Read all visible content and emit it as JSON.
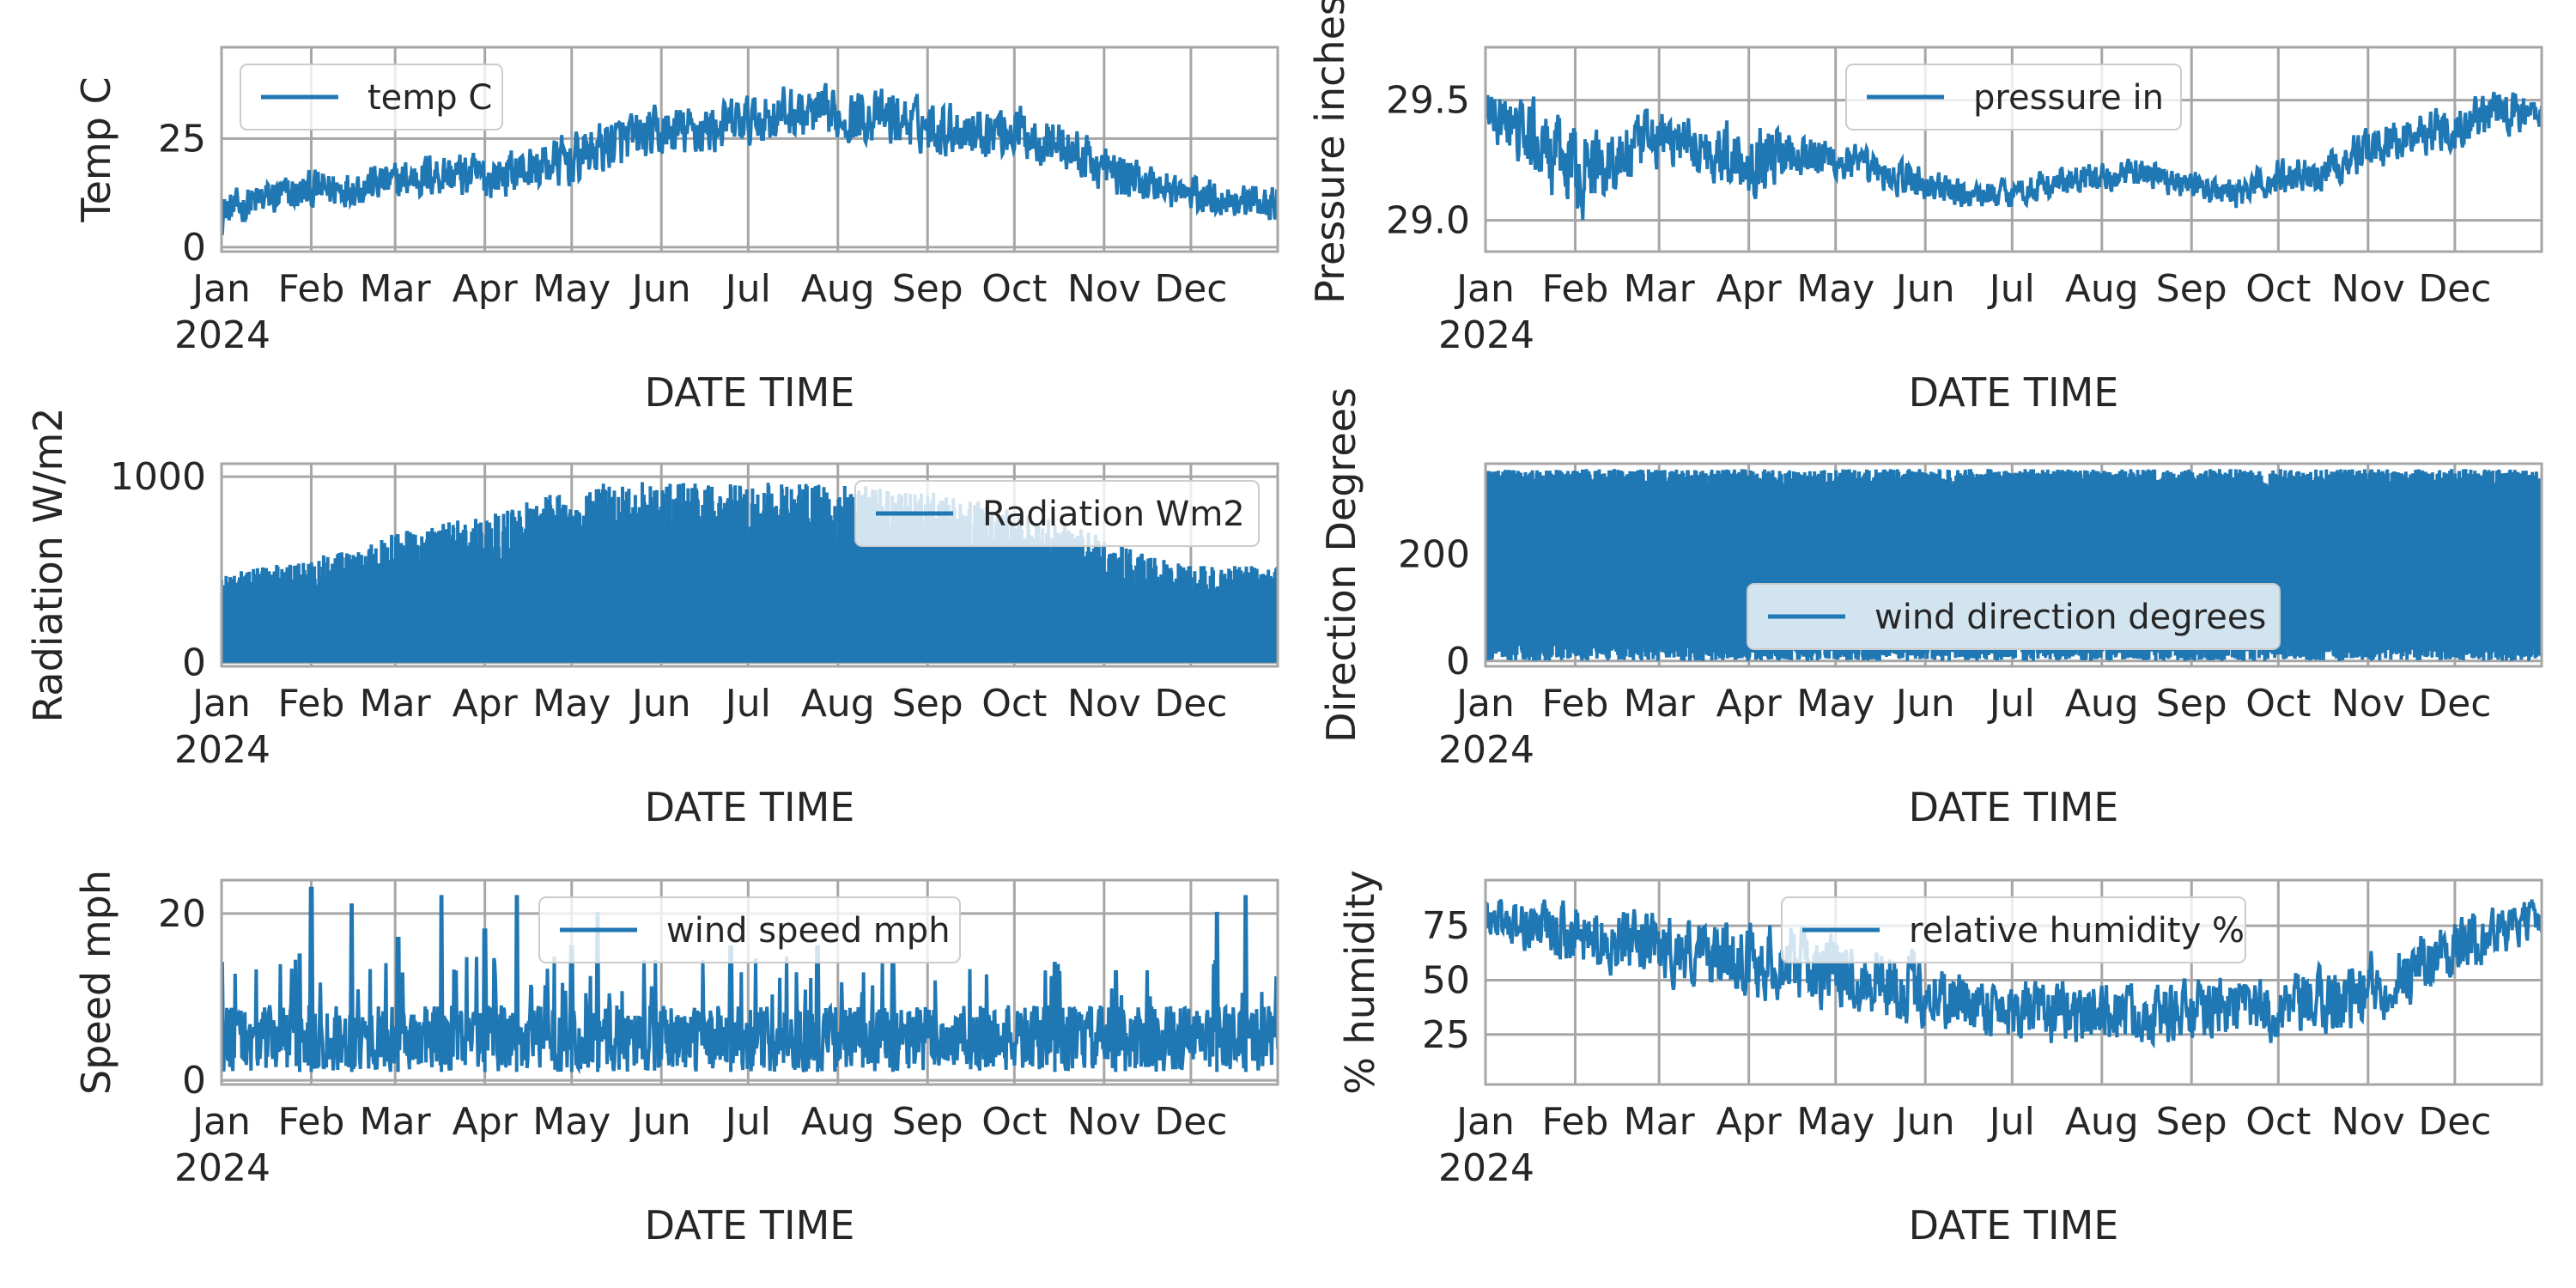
{
  "chart_data": [
    {
      "type": "line",
      "ylabel": "Temp C",
      "xlabel": "DATE TIME",
      "x_ticks": [
        "Jan\n2024",
        "Feb",
        "Mar",
        "Apr",
        "May",
        "Jun",
        "Jul",
        "Aug",
        "Sep",
        "Oct",
        "Nov",
        "Dec"
      ],
      "y_ticks": [
        0,
        25
      ],
      "ylim": [
        -1,
        46
      ],
      "xlim": [
        "2024-01-01",
        "2024-12-31"
      ],
      "legend_position": "upper-left",
      "grid": true,
      "series": [
        {
          "name": "temp C",
          "color": "#1f77b4",
          "x": [
            "2024-01-01",
            "2024-01-15",
            "2024-02-01",
            "2024-02-15",
            "2024-03-01",
            "2024-03-15",
            "2024-04-01",
            "2024-04-15",
            "2024-05-01",
            "2024-05-15",
            "2024-06-01",
            "2024-06-15",
            "2024-07-01",
            "2024-07-15",
            "2024-08-01",
            "2024-08-15",
            "2024-09-01",
            "2024-09-15",
            "2024-10-01",
            "2024-10-15",
            "2024-11-01",
            "2024-11-15",
            "2024-12-01",
            "2024-12-15",
            "2024-12-31"
          ],
          "mean": [
            8,
            11,
            13,
            14,
            15,
            17,
            16,
            18,
            20,
            24,
            26,
            27,
            29,
            31,
            30,
            30,
            28,
            27,
            27,
            24,
            18,
            15,
            12,
            11,
            10
          ],
          "spread": [
            5,
            6,
            6,
            6,
            6,
            7,
            7,
            7,
            8,
            8,
            8,
            8,
            8,
            8,
            8,
            8,
            8,
            8,
            8,
            8,
            7,
            6,
            6,
            5,
            5
          ]
        }
      ]
    },
    {
      "type": "line",
      "ylabel": "Pressure inches",
      "xlabel": "DATE TIME",
      "x_ticks": [
        "Jan\n2024",
        "Feb",
        "Mar",
        "Apr",
        "May",
        "Jun",
        "Jul",
        "Aug",
        "Sep",
        "Oct",
        "Nov",
        "Dec"
      ],
      "y_ticks": [
        29.0,
        29.5
      ],
      "ylim": [
        28.87,
        29.72
      ],
      "xlim": [
        "2024-01-01",
        "2024-12-31"
      ],
      "legend_position": "upper-center",
      "grid": true,
      "series": [
        {
          "name": "pressure in",
          "color": "#1f77b4",
          "x": [
            "2024-01-01",
            "2024-01-15",
            "2024-02-01",
            "2024-02-15",
            "2024-03-01",
            "2024-03-15",
            "2024-04-01",
            "2024-04-15",
            "2024-05-01",
            "2024-05-15",
            "2024-06-01",
            "2024-06-15",
            "2024-07-01",
            "2024-07-15",
            "2024-08-01",
            "2024-08-15",
            "2024-09-01",
            "2024-09-15",
            "2024-10-01",
            "2024-10-15",
            "2024-11-01",
            "2024-11-15",
            "2024-12-01",
            "2024-12-15",
            "2024-12-31"
          ],
          "mean": [
            29.45,
            29.35,
            29.2,
            29.25,
            29.35,
            29.3,
            29.25,
            29.3,
            29.25,
            29.2,
            29.15,
            29.1,
            29.12,
            29.15,
            29.18,
            29.2,
            29.15,
            29.1,
            29.18,
            29.2,
            29.3,
            29.35,
            29.4,
            29.45,
            29.45
          ],
          "spread": [
            0.15,
            0.2,
            0.25,
            0.2,
            0.15,
            0.15,
            0.2,
            0.15,
            0.12,
            0.1,
            0.1,
            0.08,
            0.08,
            0.08,
            0.08,
            0.08,
            0.08,
            0.08,
            0.1,
            0.1,
            0.12,
            0.12,
            0.12,
            0.12,
            0.1
          ]
        }
      ]
    },
    {
      "type": "line",
      "ylabel": "Radiation W/m2",
      "xlabel": "DATE TIME",
      "x_ticks": [
        "Jan\n2024",
        "Feb",
        "Mar",
        "Apr",
        "May",
        "Jun",
        "Jul",
        "Aug",
        "Sep",
        "Oct",
        "Nov",
        "Dec"
      ],
      "y_ticks": [
        0,
        1000
      ],
      "ylim": [
        -20,
        1070
      ],
      "xlim": [
        "2024-01-01",
        "2024-12-31"
      ],
      "legend_position": "upper-right",
      "grid": true,
      "series": [
        {
          "name": "Radiation Wm2",
          "color": "#1f77b4",
          "x": [
            "2024-01-01",
            "2024-01-15",
            "2024-02-01",
            "2024-02-15",
            "2024-03-01",
            "2024-03-15",
            "2024-04-01",
            "2024-04-15",
            "2024-05-01",
            "2024-05-15",
            "2024-06-01",
            "2024-06-15",
            "2024-07-01",
            "2024-07-15",
            "2024-08-01",
            "2024-08-15",
            "2024-09-01",
            "2024-09-15",
            "2024-10-01",
            "2024-10-15",
            "2024-11-01",
            "2024-11-15",
            "2024-12-01",
            "2024-12-15",
            "2024-12-31"
          ],
          "min": [
            0,
            0,
            0,
            0,
            0,
            0,
            0,
            0,
            0,
            0,
            0,
            0,
            0,
            0,
            0,
            0,
            0,
            0,
            0,
            0,
            0,
            0,
            0,
            0,
            0
          ],
          "max": [
            480,
            530,
            560,
            620,
            700,
            740,
            800,
            860,
            940,
            970,
            980,
            980,
            975,
            970,
            960,
            950,
            920,
            880,
            830,
            760,
            680,
            580,
            520,
            520,
            530
          ]
        }
      ]
    },
    {
      "type": "line",
      "ylabel": "Direction Degrees",
      "xlabel": "DATE TIME",
      "x_ticks": [
        "Jan\n2024",
        "Feb",
        "Mar",
        "Apr",
        "May",
        "Jun",
        "Jul",
        "Aug",
        "Sep",
        "Oct",
        "Nov",
        "Dec"
      ],
      "y_ticks": [
        0,
        200
      ],
      "ylim": [
        -10,
        370
      ],
      "xlim": [
        "2024-01-01",
        "2024-12-31"
      ],
      "legend_position": "lower-center",
      "grid": true,
      "series": [
        {
          "name": "wind direction degrees",
          "color": "#1f77b4",
          "range": [
            0,
            360
          ]
        }
      ]
    },
    {
      "type": "line",
      "ylabel": "Speed mph",
      "xlabel": "DATE TIME",
      "x_ticks": [
        "Jan\n2024",
        "Feb",
        "Mar",
        "Apr",
        "May",
        "Jun",
        "Jul",
        "Aug",
        "Sep",
        "Oct",
        "Nov",
        "Dec"
      ],
      "y_ticks": [
        0,
        20
      ],
      "ylim": [
        -0.5,
        24
      ],
      "xlim": [
        "2024-01-01",
        "2024-12-31"
      ],
      "legend_position": "upper-center",
      "grid": true,
      "series": [
        {
          "name": "wind speed mph",
          "color": "#1f77b4",
          "typical_range": [
            0,
            9
          ],
          "peaks": [
            {
              "x": "2024-01-01",
              "y": 14
            },
            {
              "x": "2024-01-28",
              "y": 15
            },
            {
              "x": "2024-02-01",
              "y": 23
            },
            {
              "x": "2024-02-15",
              "y": 21
            },
            {
              "x": "2024-03-02",
              "y": 17
            },
            {
              "x": "2024-03-17",
              "y": 22
            },
            {
              "x": "2024-04-01",
              "y": 18
            },
            {
              "x": "2024-04-12",
              "y": 22
            },
            {
              "x": "2024-05-01",
              "y": 16
            },
            {
              "x": "2024-05-10",
              "y": 20
            },
            {
              "x": "2024-06-25",
              "y": 16
            },
            {
              "x": "2024-07-25",
              "y": 16
            },
            {
              "x": "2024-08-20",
              "y": 14
            },
            {
              "x": "2024-10-15",
              "y": 14
            },
            {
              "x": "2024-11-05",
              "y": 13
            },
            {
              "x": "2024-12-10",
              "y": 20
            },
            {
              "x": "2024-12-20",
              "y": 22
            }
          ]
        }
      ]
    },
    {
      "type": "line",
      "ylabel": "% humidity",
      "xlabel": "DATE TIME",
      "x_ticks": [
        "Jan\n2024",
        "Feb",
        "Mar",
        "Apr",
        "May",
        "Jun",
        "Jul",
        "Aug",
        "Sep",
        "Oct",
        "Nov",
        "Dec"
      ],
      "y_ticks": [
        25,
        50,
        75
      ],
      "ylim": [
        2,
        96
      ],
      "xlim": [
        "2024-01-01",
        "2024-12-31"
      ],
      "legend_position": "upper-center",
      "grid": true,
      "series": [
        {
          "name": "relative humidity %",
          "color": "#1f77b4",
          "x": [
            "2024-01-01",
            "2024-01-15",
            "2024-02-01",
            "2024-02-15",
            "2024-03-01",
            "2024-03-15",
            "2024-04-01",
            "2024-04-15",
            "2024-05-01",
            "2024-05-15",
            "2024-06-01",
            "2024-06-15",
            "2024-07-01",
            "2024-07-15",
            "2024-08-01",
            "2024-08-15",
            "2024-09-01",
            "2024-09-15",
            "2024-10-01",
            "2024-10-15",
            "2024-11-01",
            "2024-11-15",
            "2024-12-01",
            "2024-12-15",
            "2024-12-31"
          ],
          "mean": [
            80,
            75,
            70,
            68,
            65,
            62,
            60,
            58,
            55,
            50,
            45,
            40,
            38,
            35,
            35,
            35,
            35,
            38,
            35,
            40,
            45,
            55,
            65,
            72,
            78
          ],
          "spread": [
            12,
            15,
            18,
            18,
            20,
            20,
            22,
            22,
            22,
            22,
            22,
            20,
            18,
            18,
            18,
            18,
            18,
            18,
            18,
            20,
            22,
            20,
            18,
            15,
            12
          ]
        }
      ]
    }
  ]
}
